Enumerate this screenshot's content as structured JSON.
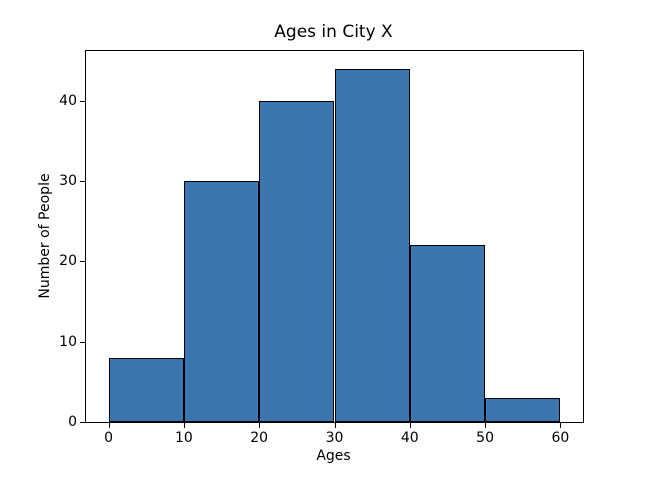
{
  "chart_data": {
    "type": "histogram",
    "title": "Ages in City X",
    "xlabel": "Ages",
    "ylabel": "Number of People",
    "bin_edges": [
      0,
      10,
      20,
      30,
      40,
      50,
      60
    ],
    "values": [
      8,
      30,
      40,
      44,
      22,
      3
    ],
    "xticks": [
      0,
      10,
      20,
      30,
      40,
      50,
      60
    ],
    "yticks": [
      0,
      10,
      20,
      30,
      40
    ],
    "xlim": [
      -3,
      63
    ],
    "ylim": [
      0,
      46.2
    ],
    "bar_color": "#3b76b1",
    "edge_color": "#000000",
    "grid": false,
    "legend_position": "none",
    "background_color": "#ffffff"
  }
}
